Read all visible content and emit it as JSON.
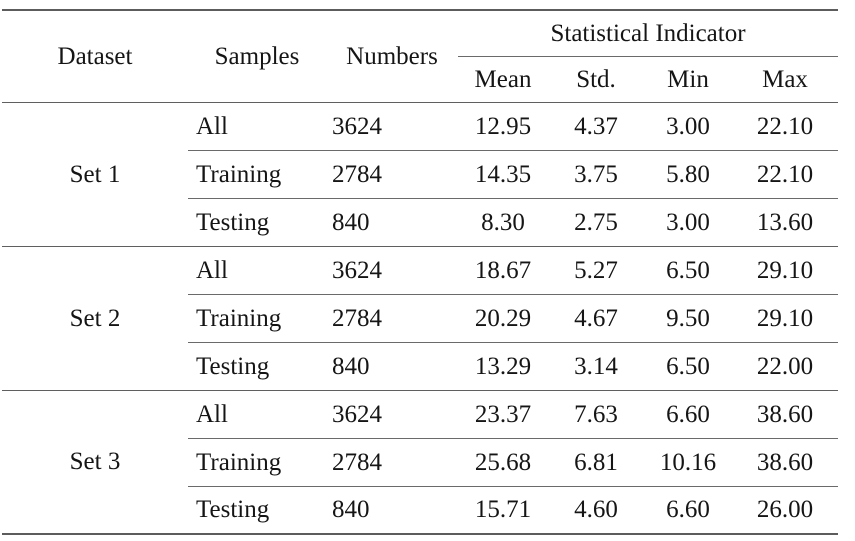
{
  "table": {
    "column_headers": {
      "dataset": "Dataset",
      "samples": "Samples",
      "numbers": "Numbers",
      "stat_group": "Statistical Indicator",
      "mean": "Mean",
      "std": "Std.",
      "min": "Min",
      "max": "Max"
    },
    "groups": [
      {
        "dataset": "Set 1",
        "rows": [
          {
            "samples": "All",
            "numbers": "3624",
            "mean": "12.95",
            "std": "4.37",
            "min": "3.00",
            "max": "22.10"
          },
          {
            "samples": "Training",
            "numbers": "2784",
            "mean": "14.35",
            "std": "3.75",
            "min": "5.80",
            "max": "22.10"
          },
          {
            "samples": "Testing",
            "numbers": "840",
            "mean": "8.30",
            "std": "2.75",
            "min": "3.00",
            "max": "13.60"
          }
        ]
      },
      {
        "dataset": "Set 2",
        "rows": [
          {
            "samples": "All",
            "numbers": "3624",
            "mean": "18.67",
            "std": "5.27",
            "min": "6.50",
            "max": "29.10"
          },
          {
            "samples": "Training",
            "numbers": "2784",
            "mean": "20.29",
            "std": "4.67",
            "min": "9.50",
            "max": "29.10"
          },
          {
            "samples": "Testing",
            "numbers": "840",
            "mean": "13.29",
            "std": "3.14",
            "min": "6.50",
            "max": "22.00"
          }
        ]
      },
      {
        "dataset": "Set 3",
        "rows": [
          {
            "samples": "All",
            "numbers": "3624",
            "mean": "23.37",
            "std": "7.63",
            "min": "6.60",
            "max": "38.60"
          },
          {
            "samples": "Training",
            "numbers": "2784",
            "mean": "25.68",
            "std": "6.81",
            "min": "10.16",
            "max": "38.60"
          },
          {
            "samples": "Testing",
            "numbers": "840",
            "mean": "15.71",
            "std": "4.60",
            "min": "6.60",
            "max": "26.00"
          }
        ]
      }
    ],
    "colors": {
      "rule": "#5f5f5f",
      "text": "#151515",
      "background": "#ffffff"
    }
  }
}
